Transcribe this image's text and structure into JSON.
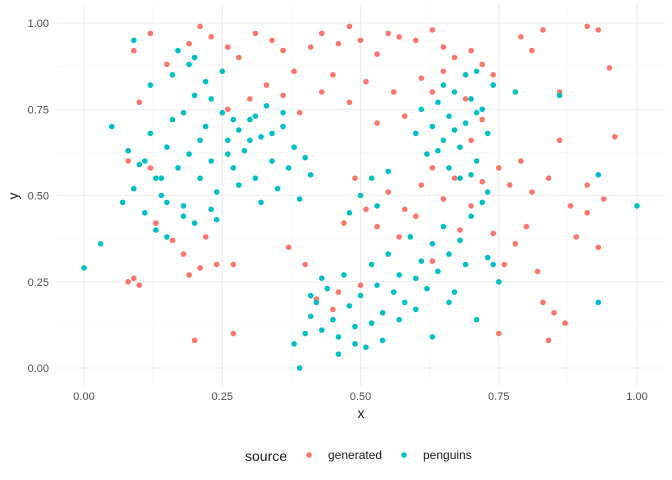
{
  "chart_data": {
    "type": "scatter",
    "xlabel": "x",
    "ylabel": "y",
    "xlim": [
      0,
      1
    ],
    "ylim": [
      0,
      1
    ],
    "x_ticks": [
      0,
      0.25,
      0.5,
      0.75,
      1
    ],
    "y_ticks": [
      0,
      0.25,
      0.5,
      0.75,
      1
    ],
    "x_tick_labels": [
      "0.00",
      "0.25",
      "0.50",
      "0.75",
      "1.00"
    ],
    "y_tick_labels": [
      "0.00",
      "0.25",
      "0.50",
      "0.75",
      "1.00"
    ],
    "grid": true,
    "legend": {
      "title": "source",
      "position": "bottom"
    },
    "series": [
      {
        "name": "generated",
        "color": "#F8766D",
        "points": [
          [
            0.09,
            0.92
          ],
          [
            0.12,
            0.97
          ],
          [
            0.15,
            0.88
          ],
          [
            0.19,
            0.94
          ],
          [
            0.21,
            0.99
          ],
          [
            0.23,
            0.96
          ],
          [
            0.26,
            0.93
          ],
          [
            0.28,
            0.9
          ],
          [
            0.31,
            0.97
          ],
          [
            0.34,
            0.95
          ],
          [
            0.36,
            0.92
          ],
          [
            0.38,
            0.86
          ],
          [
            0.41,
            0.93
          ],
          [
            0.43,
            0.97
          ],
          [
            0.46,
            0.94
          ],
          [
            0.48,
            0.99
          ],
          [
            0.5,
            0.95
          ],
          [
            0.53,
            0.91
          ],
          [
            0.55,
            0.97
          ],
          [
            0.57,
            0.96
          ],
          [
            0.6,
            0.95
          ],
          [
            0.63,
            0.98
          ],
          [
            0.65,
            0.93
          ],
          [
            0.67,
            0.9
          ],
          [
            0.7,
            0.92
          ],
          [
            0.72,
            0.88
          ],
          [
            0.74,
            0.85
          ],
          [
            0.79,
            0.96
          ],
          [
            0.81,
            0.92
          ],
          [
            0.83,
            0.98
          ],
          [
            0.86,
            0.8
          ],
          [
            0.91,
            0.99
          ],
          [
            0.93,
            0.98
          ],
          [
            0.95,
            0.87
          ],
          [
            0.26,
            0.75
          ],
          [
            0.3,
            0.78
          ],
          [
            0.33,
            0.82
          ],
          [
            0.36,
            0.79
          ],
          [
            0.39,
            0.74
          ],
          [
            0.43,
            0.8
          ],
          [
            0.45,
            0.85
          ],
          [
            0.48,
            0.77
          ],
          [
            0.51,
            0.83
          ],
          [
            0.53,
            0.71
          ],
          [
            0.56,
            0.8
          ],
          [
            0.58,
            0.73
          ],
          [
            0.61,
            0.84
          ],
          [
            0.63,
            0.8
          ],
          [
            0.65,
            0.86
          ],
          [
            0.69,
            0.78
          ],
          [
            0.7,
            0.66
          ],
          [
            0.72,
            0.72
          ],
          [
            0.75,
            0.58
          ],
          [
            0.77,
            0.53
          ],
          [
            0.79,
            0.6
          ],
          [
            0.81,
            0.51
          ],
          [
            0.84,
            0.55
          ],
          [
            0.86,
            0.66
          ],
          [
            0.88,
            0.47
          ],
          [
            0.91,
            0.53
          ],
          [
            0.94,
            0.49
          ],
          [
            0.96,
            0.67
          ],
          [
            0.08,
            0.6
          ],
          [
            0.1,
            0.77
          ],
          [
            0.12,
            0.58
          ],
          [
            0.13,
            0.42
          ],
          [
            0.16,
            0.37
          ],
          [
            0.18,
            0.33
          ],
          [
            0.19,
            0.27
          ],
          [
            0.21,
            0.29
          ],
          [
            0.22,
            0.38
          ],
          [
            0.24,
            0.3
          ],
          [
            0.27,
            0.3
          ],
          [
            0.08,
            0.25
          ],
          [
            0.09,
            0.26
          ],
          [
            0.1,
            0.24
          ],
          [
            0.2,
            0.08
          ],
          [
            0.27,
            0.1
          ],
          [
            0.37,
            0.35
          ],
          [
            0.4,
            0.3
          ],
          [
            0.42,
            0.2
          ],
          [
            0.45,
            0.17
          ],
          [
            0.47,
            0.42
          ],
          [
            0.49,
            0.55
          ],
          [
            0.51,
            0.46
          ],
          [
            0.53,
            0.41
          ],
          [
            0.55,
            0.51
          ],
          [
            0.57,
            0.38
          ],
          [
            0.58,
            0.46
          ],
          [
            0.6,
            0.44
          ],
          [
            0.61,
            0.53
          ],
          [
            0.63,
            0.58
          ],
          [
            0.65,
            0.49
          ],
          [
            0.67,
            0.55
          ],
          [
            0.68,
            0.4
          ],
          [
            0.7,
            0.47
          ],
          [
            0.72,
            0.54
          ],
          [
            0.74,
            0.39
          ],
          [
            0.76,
            0.3
          ],
          [
            0.78,
            0.36
          ],
          [
            0.8,
            0.41
          ],
          [
            0.82,
            0.28
          ],
          [
            0.83,
            0.19
          ],
          [
            0.85,
            0.16
          ],
          [
            0.87,
            0.13
          ],
          [
            0.89,
            0.38
          ],
          [
            0.91,
            0.45
          ],
          [
            0.93,
            0.35
          ],
          [
            0.75,
            0.1
          ],
          [
            0.84,
            0.08
          ],
          [
            0.63,
            0.31
          ],
          [
            0.46,
            0.22
          ],
          [
            0.5,
            0.24
          ]
        ]
      },
      {
        "name": "penguins",
        "color": "#00BFC4",
        "points": [
          [
            0.0,
            0.29
          ],
          [
            0.03,
            0.36
          ],
          [
            0.05,
            0.7
          ],
          [
            0.07,
            0.48
          ],
          [
            0.08,
            0.63
          ],
          [
            0.09,
            0.52
          ],
          [
            0.1,
            0.59
          ],
          [
            0.11,
            0.45
          ],
          [
            0.12,
            0.68
          ],
          [
            0.13,
            0.55
          ],
          [
            0.14,
            0.5
          ],
          [
            0.15,
            0.64
          ],
          [
            0.16,
            0.72
          ],
          [
            0.17,
            0.58
          ],
          [
            0.18,
            0.47
          ],
          [
            0.19,
            0.62
          ],
          [
            0.2,
            0.79
          ],
          [
            0.21,
            0.55
          ],
          [
            0.22,
            0.7
          ],
          [
            0.23,
            0.6
          ],
          [
            0.24,
            0.51
          ],
          [
            0.25,
            0.74
          ],
          [
            0.26,
            0.66
          ],
          [
            0.27,
            0.58
          ],
          [
            0.28,
            0.69
          ],
          [
            0.29,
            0.63
          ],
          [
            0.3,
            0.72
          ],
          [
            0.31,
            0.55
          ],
          [
            0.32,
            0.67
          ],
          [
            0.33,
            0.76
          ],
          [
            0.34,
            0.6
          ],
          [
            0.35,
            0.52
          ],
          [
            0.36,
            0.7
          ],
          [
            0.37,
            0.58
          ],
          [
            0.38,
            0.64
          ],
          [
            0.39,
            0.49
          ],
          [
            0.4,
            0.61
          ],
          [
            0.41,
            0.56
          ],
          [
            0.12,
            0.82
          ],
          [
            0.16,
            0.85
          ],
          [
            0.19,
            0.88
          ],
          [
            0.22,
            0.83
          ],
          [
            0.13,
            0.4
          ],
          [
            0.15,
            0.38
          ],
          [
            0.18,
            0.44
          ],
          [
            0.2,
            0.42
          ],
          [
            0.23,
            0.46
          ],
          [
            0.24,
            0.43
          ],
          [
            0.09,
            0.95
          ],
          [
            0.17,
            0.92
          ],
          [
            0.2,
            0.9
          ],
          [
            0.25,
            0.86
          ],
          [
            0.14,
            0.55
          ],
          [
            0.26,
            0.62
          ],
          [
            0.3,
            0.66
          ],
          [
            0.34,
            0.68
          ],
          [
            0.11,
            0.6
          ],
          [
            0.21,
            0.66
          ],
          [
            0.27,
            0.72
          ],
          [
            0.18,
            0.74
          ],
          [
            0.23,
            0.78
          ],
          [
            0.31,
            0.73
          ],
          [
            0.36,
            0.74
          ],
          [
            0.15,
            0.48
          ],
          [
            0.28,
            0.53
          ],
          [
            0.32,
            0.48
          ],
          [
            0.38,
            0.07
          ],
          [
            0.39,
            0.0
          ],
          [
            0.4,
            0.1
          ],
          [
            0.41,
            0.15
          ],
          [
            0.42,
            0.19
          ],
          [
            0.43,
            0.11
          ],
          [
            0.44,
            0.23
          ],
          [
            0.45,
            0.14
          ],
          [
            0.46,
            0.09
          ],
          [
            0.47,
            0.27
          ],
          [
            0.48,
            0.18
          ],
          [
            0.49,
            0.12
          ],
          [
            0.5,
            0.21
          ],
          [
            0.51,
            0.06
          ],
          [
            0.52,
            0.3
          ],
          [
            0.53,
            0.24
          ],
          [
            0.54,
            0.16
          ],
          [
            0.55,
            0.33
          ],
          [
            0.56,
            0.22
          ],
          [
            0.57,
            0.27
          ],
          [
            0.58,
            0.19
          ],
          [
            0.59,
            0.38
          ],
          [
            0.6,
            0.26
          ],
          [
            0.61,
            0.31
          ],
          [
            0.62,
            0.23
          ],
          [
            0.63,
            0.36
          ],
          [
            0.64,
            0.28
          ],
          [
            0.65,
            0.41
          ],
          [
            0.66,
            0.33
          ],
          [
            0.67,
            0.22
          ],
          [
            0.68,
            0.37
          ],
          [
            0.69,
            0.3
          ],
          [
            0.7,
            0.44
          ],
          [
            0.71,
            0.14
          ],
          [
            0.72,
            0.48
          ],
          [
            0.73,
            0.32
          ],
          [
            0.46,
            0.04
          ],
          [
            0.49,
            0.07
          ],
          [
            0.52,
            0.13
          ],
          [
            0.43,
            0.26
          ],
          [
            0.41,
            0.21
          ],
          [
            0.54,
            0.08
          ],
          [
            0.57,
            0.14
          ],
          [
            0.6,
            0.17
          ],
          [
            0.63,
            0.09
          ],
          [
            0.66,
            0.19
          ],
          [
            0.5,
            0.5
          ],
          [
            0.52,
            0.55
          ],
          [
            0.55,
            0.57
          ],
          [
            0.53,
            0.47
          ],
          [
            0.48,
            0.45
          ],
          [
            0.62,
            0.62
          ],
          [
            0.63,
            0.7
          ],
          [
            0.64,
            0.77
          ],
          [
            0.65,
            0.66
          ],
          [
            0.66,
            0.73
          ],
          [
            0.67,
            0.8
          ],
          [
            0.68,
            0.64
          ],
          [
            0.69,
            0.71
          ],
          [
            0.7,
            0.78
          ],
          [
            0.71,
            0.6
          ],
          [
            0.72,
            0.75
          ],
          [
            0.73,
            0.68
          ],
          [
            0.74,
            0.82
          ],
          [
            0.66,
            0.58
          ],
          [
            0.68,
            0.55
          ],
          [
            0.7,
            0.56
          ],
          [
            0.64,
            0.63
          ],
          [
            0.67,
            0.69
          ],
          [
            0.71,
            0.74
          ],
          [
            0.6,
            0.68
          ],
          [
            0.61,
            0.75
          ],
          [
            0.69,
            0.85
          ],
          [
            0.65,
            0.82
          ],
          [
            0.71,
            0.86
          ],
          [
            0.78,
            0.8
          ],
          [
            0.86,
            0.79
          ],
          [
            0.93,
            0.56
          ],
          [
            1.0,
            0.47
          ],
          [
            0.93,
            0.19
          ],
          [
            0.74,
            0.3
          ],
          [
            0.75,
            0.25
          ],
          [
            0.73,
            0.51
          ]
        ]
      }
    ]
  }
}
